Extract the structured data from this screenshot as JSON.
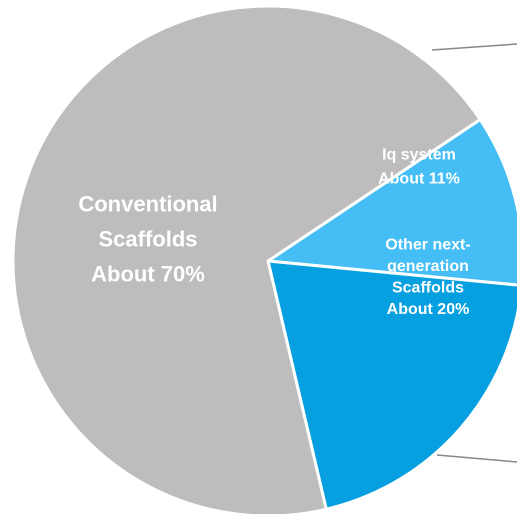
{
  "chart_data": {
    "type": "pie",
    "slices": [
      {
        "lines": [
          "Iq system",
          "About 11%"
        ],
        "value": 11,
        "color": "#45bdf5"
      },
      {
        "lines": [
          "Other next-",
          "generation",
          "Scaffolds",
          "About 20%"
        ],
        "value": 20,
        "color": "#06a0e0"
      },
      {
        "lines": [
          "Conventional",
          "Scaffolds",
          "About 70%"
        ],
        "value": 70,
        "color": "#bdbdbd"
      }
    ],
    "legend": "none",
    "annotation_lines": "two grey leader lines from the right edge of the blue slices toward the right margin",
    "line_color": "#888888"
  }
}
